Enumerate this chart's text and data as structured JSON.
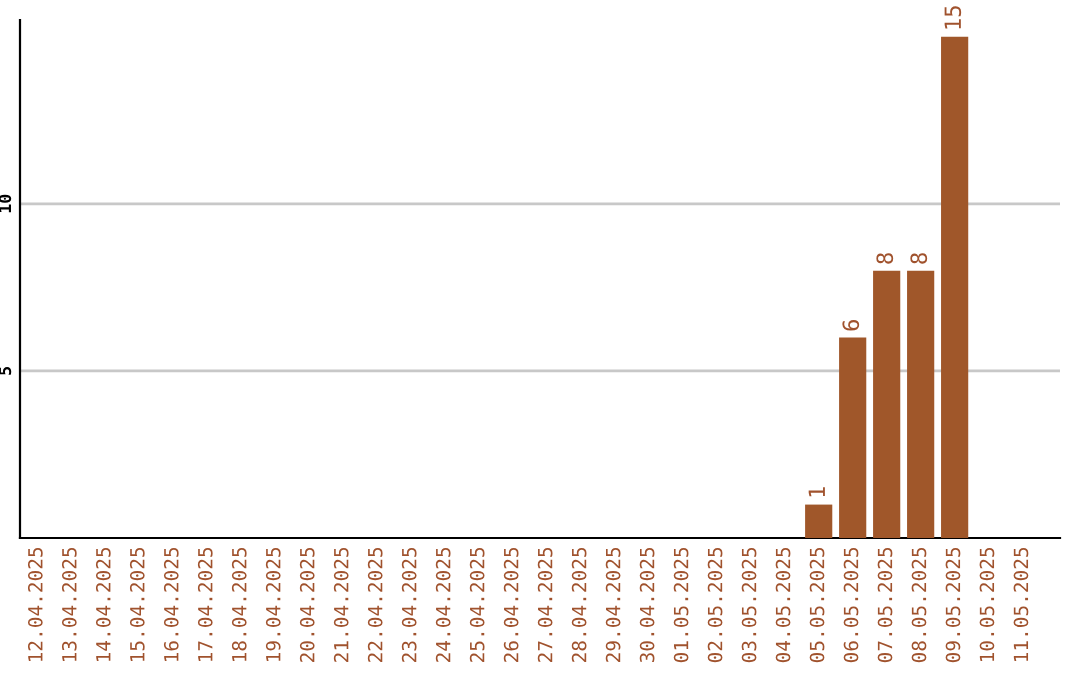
{
  "chart_data": {
    "type": "bar",
    "categories": [
      "12.04.2025",
      "13.04.2025",
      "14.04.2025",
      "15.04.2025",
      "16.04.2025",
      "17.04.2025",
      "18.04.2025",
      "19.04.2025",
      "20.04.2025",
      "21.04.2025",
      "22.04.2025",
      "23.04.2025",
      "24.04.2025",
      "25.04.2025",
      "26.04.2025",
      "27.04.2025",
      "28.04.2025",
      "29.04.2025",
      "30.04.2025",
      "01.05.2025",
      "02.05.2025",
      "03.05.2025",
      "04.05.2025",
      "05.05.2025",
      "06.05.2025",
      "07.05.2025",
      "08.05.2025",
      "09.05.2025",
      "10.05.2025",
      "11.05.2025"
    ],
    "values": [
      0,
      0,
      0,
      0,
      0,
      0,
      0,
      0,
      0,
      0,
      0,
      0,
      0,
      0,
      0,
      0,
      0,
      0,
      0,
      0,
      0,
      0,
      0,
      1,
      6,
      8,
      8,
      15,
      0,
      0
    ],
    "value_labels": [
      null,
      null,
      null,
      null,
      null,
      null,
      null,
      null,
      null,
      null,
      null,
      null,
      null,
      null,
      null,
      null,
      null,
      null,
      null,
      null,
      null,
      null,
      null,
      "1",
      "6",
      "8",
      "8",
      "15",
      null,
      null
    ],
    "color": "#a0572a",
    "ylim": [
      0,
      15.5
    ],
    "yticks": [
      5,
      10
    ],
    "grid": "y"
  }
}
